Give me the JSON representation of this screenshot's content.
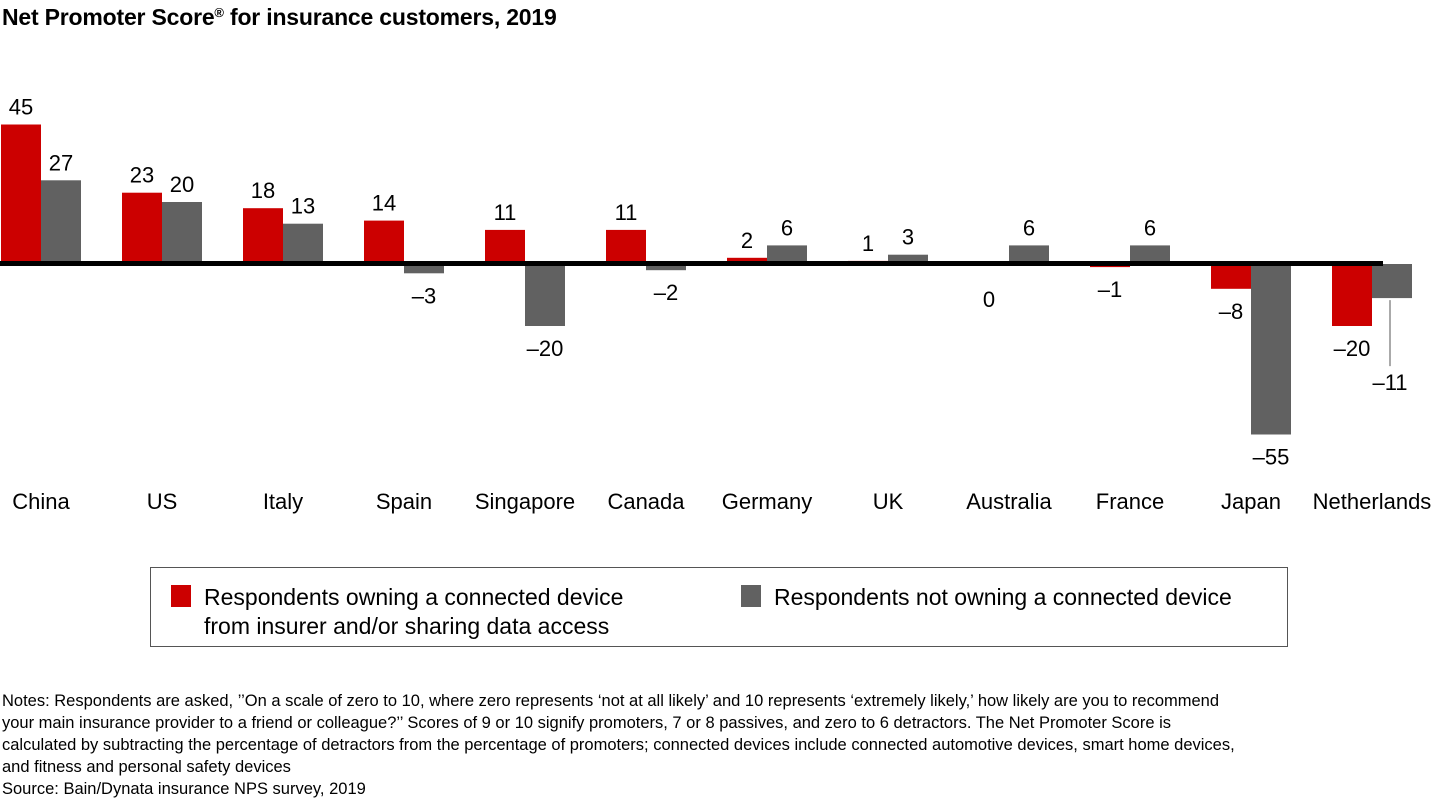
{
  "title": "Net Promoter Score",
  "title_mark": "®",
  "title_rest": " for insurance customers, 2019",
  "chart_data": {
    "type": "bar",
    "title": "Net Promoter Score® for insurance customers, 2019",
    "xlabel": "",
    "ylabel": "",
    "ylim": [
      -55,
      45
    ],
    "grid": false,
    "legend_position": "bottom",
    "categories": [
      "China",
      "US",
      "Italy",
      "Spain",
      "Singapore",
      "Canada",
      "Germany",
      "UK",
      "Australia",
      "France",
      "Japan",
      "Netherlands"
    ],
    "series": [
      {
        "name": "Respondents owning a connected device from insurer and/or sharing data access",
        "color": "#cc0000",
        "values": [
          45,
          23,
          18,
          14,
          11,
          11,
          2,
          1,
          0,
          -1,
          -8,
          -20
        ]
      },
      {
        "name": "Respondents not owning a connected device",
        "color": "#616161",
        "values": [
          27,
          20,
          13,
          -3,
          -20,
          -2,
          6,
          3,
          6,
          6,
          -55,
          -11
        ]
      }
    ],
    "value_labels": [
      [
        "45",
        "23",
        "18",
        "14",
        "11",
        "11",
        "2",
        "1",
        "0",
        "–1",
        "–8",
        "–20"
      ],
      [
        "27",
        "20",
        "13",
        "–3",
        "–20",
        "–2",
        "6",
        "3",
        "6",
        "6",
        "–55",
        "–11"
      ]
    ]
  },
  "legend": {
    "items": [
      {
        "line1": "Respondents owning a connected device",
        "line2": "from insurer and/or sharing data access",
        "color": "#cc0000"
      },
      {
        "line1": "Respondents not owning a connected device",
        "line2": "",
        "color": "#616161"
      }
    ]
  },
  "notes": {
    "lines": [
      "Notes: Respondents are asked, ’’On a scale of zero to 10, where zero represents ‘not at all likely’ and 10 represents ‘extremely likely,’ how likely are you to recommend",
      "your main insurance provider to a friend or colleague?’’ Scores of 9 or 10 signify promoters, 7 or 8 passives, and zero to 6 detractors. The Net Promoter Score is",
      "calculated by subtracting the percentage of detractors from the percentage of promoters; connected devices include connected automotive devices, smart home devices,",
      "and fitness and personal safety devices"
    ],
    "source": "Source: Bain/Dynata insurance NPS survey, 2019"
  }
}
